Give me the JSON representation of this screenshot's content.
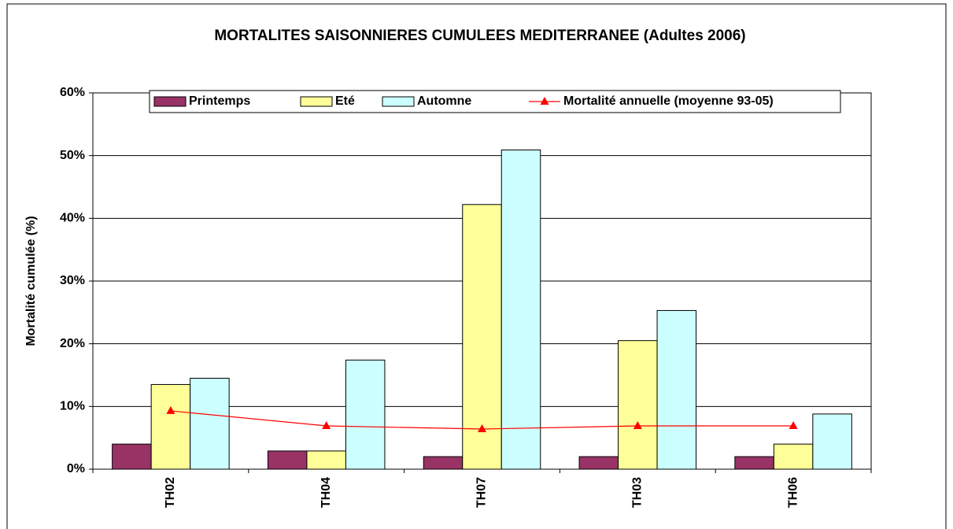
{
  "chart_data": {
    "type": "bar",
    "title": "MORTALITES SAISONNIERES CUMULEES MEDITERRANEE (Adultes 2006)",
    "y_label": "Mortalité cumulée (%)",
    "categories": [
      "TH02",
      "TH04",
      "TH07",
      "TH03",
      "TH06"
    ],
    "series": [
      {
        "name": "Printemps",
        "color": "#993366",
        "values": [
          4.0,
          2.9,
          2.0,
          2.0,
          2.0
        ]
      },
      {
        "name": "Eté",
        "color": "#ffff99",
        "values": [
          13.5,
          2.9,
          42.2,
          20.5,
          4.0
        ]
      },
      {
        "name": "Automne",
        "color": "#ccffff",
        "values": [
          14.5,
          17.4,
          50.9,
          25.3,
          8.8
        ]
      },
      {
        "name": "Mortalité annuelle (moyenne 93-05)",
        "color": "#ff0000",
        "type": "line",
        "values": [
          9.3,
          6.9,
          6.4,
          6.9,
          6.9
        ]
      }
    ],
    "ylim": [
      0,
      60
    ],
    "yticks": [
      {
        "value": 0,
        "label": "0%"
      },
      {
        "value": 10,
        "label": "10%"
      },
      {
        "value": 20,
        "label": "20%"
      },
      {
        "value": 30,
        "label": "30%"
      },
      {
        "value": 40,
        "label": "40%"
      },
      {
        "value": 50,
        "label": "50%"
      },
      {
        "value": 60,
        "label": "60%"
      }
    ],
    "grid": true,
    "legend": "top"
  }
}
